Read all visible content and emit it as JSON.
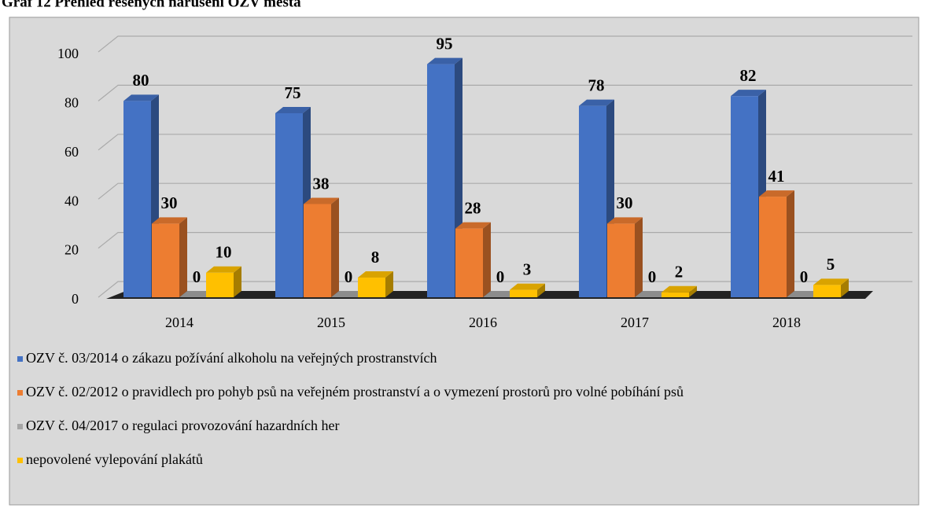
{
  "chart_data": {
    "type": "bar3d",
    "title": "Graf 12 Přehled řešených narušení OZV města",
    "categories": [
      "2014",
      "2015",
      "2016",
      "2017",
      "2018"
    ],
    "series": [
      {
        "name": "OZV č. 03/2014 o zákazu požívání alkoholu na veřejných prostranstvích",
        "color": "#4472c4",
        "values": [
          80,
          75,
          95,
          78,
          82
        ]
      },
      {
        "name": "OZV č. 02/2012 o pravidlech pro pohyb psů na veřejném prostranství a o vymezení prostorů pro volné pobíhání psů",
        "color": "#ed7d31",
        "values": [
          30,
          38,
          28,
          30,
          41
        ]
      },
      {
        "name": "OZV č. 04/2017 o regulaci provozování hazardních her",
        "color": "#a5a5a5",
        "values": [
          0,
          0,
          0,
          0,
          0
        ]
      },
      {
        "name": "nepovolené vylepování plakátů",
        "color": "#ffc000",
        "values": [
          10,
          8,
          3,
          2,
          5
        ]
      }
    ],
    "ylim": [
      0,
      100
    ],
    "yticks": [
      0,
      20,
      40,
      60,
      80,
      100
    ],
    "grid": true
  }
}
